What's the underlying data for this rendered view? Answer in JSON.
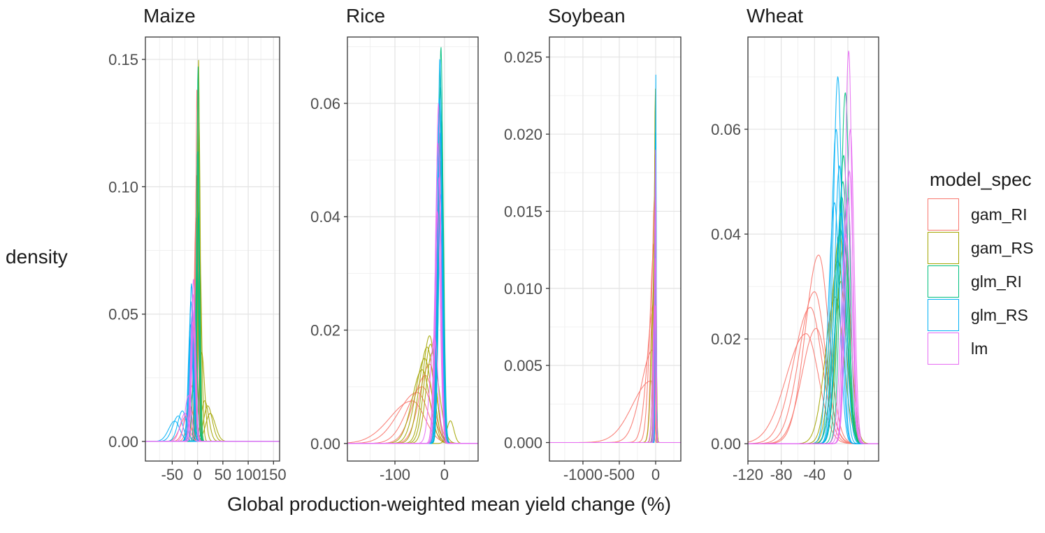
{
  "figure": {
    "x_axis_title": "Global production-weighted mean yield change (%)",
    "y_axis_title": "density"
  },
  "legend": {
    "title": "model_spec",
    "entries": [
      {
        "label": "gam_RI",
        "color": "#F8766D"
      },
      {
        "label": "gam_RS",
        "color": "#A3A500"
      },
      {
        "label": "glm_RI",
        "color": "#00BF7D"
      },
      {
        "label": "glm_RS",
        "color": "#00B0F6"
      },
      {
        "label": "lm",
        "color": "#E76BF3"
      }
    ]
  },
  "chart_data": {
    "type": "density",
    "title": "",
    "xlabel": "Global production-weighted mean yield change (%)",
    "ylabel": "density",
    "legend_title": "model_spec",
    "legend_position": "right",
    "grid": true,
    "series_colors": {
      "gam_RI": "#F8766D",
      "gam_RS": "#A3A500",
      "glm_RI": "#00BF7D",
      "glm_RS": "#00B0F6",
      "lm": "#E76BF3"
    },
    "panels": [
      {
        "title": "Maize",
        "xlim": [
          -103,
          162
        ],
        "ylim": [
          -0.0077,
          0.1588
        ],
        "x_ticks": [
          {
            "v": -50,
            "label": "-50"
          },
          {
            "v": 0,
            "label": "0"
          },
          {
            "v": 50,
            "label": "50"
          },
          {
            "v": 100,
            "label": "100"
          },
          {
            "v": 150,
            "label": "150"
          }
        ],
        "x_minor": [
          -75,
          -25,
          25,
          75,
          125
        ],
        "y_ticks": [
          {
            "v": 0,
            "label": "0.00"
          },
          {
            "v": 0.05,
            "label": "0.05"
          },
          {
            "v": 0.1,
            "label": "0.10"
          },
          {
            "v": 0.15,
            "label": "0.15"
          }
        ],
        "y_minor": [
          0.025,
          0.075,
          0.125
        ],
        "curves": [
          {
            "m": "gam_RI",
            "c": -1,
            "sl": 2.5,
            "sr": 2.5,
            "p": 0.14
          },
          {
            "m": "gam_RI",
            "c": -2,
            "sl": 3,
            "sr": 3,
            "p": 0.105
          },
          {
            "m": "gam_RI",
            "c": -3,
            "sl": 4,
            "sr": 3.5,
            "p": 0.088
          },
          {
            "m": "gam_RI",
            "c": -6,
            "sl": 6,
            "sr": 5,
            "p": 0.045
          },
          {
            "m": "gam_RI",
            "c": -10,
            "sl": 8,
            "sr": 6,
            "p": 0.022
          },
          {
            "m": "gam_RI",
            "c": -15,
            "sl": 10,
            "sr": 8,
            "p": 0.014
          },
          {
            "m": "gam_RI",
            "c": -22,
            "sl": 12,
            "sr": 9,
            "p": 0.01
          },
          {
            "m": "gam_RS",
            "c": 2,
            "sl": 2.2,
            "sr": 2.2,
            "p": 0.15
          },
          {
            "m": "gam_RS",
            "c": 3,
            "sl": 2.5,
            "sr": 2.5,
            "p": 0.125
          },
          {
            "m": "gam_RS",
            "c": 4,
            "sl": 3,
            "sr": 4,
            "p": 0.075
          },
          {
            "m": "gam_RS",
            "c": 8,
            "sl": 5,
            "sr": 6,
            "p": 0.035
          },
          {
            "m": "gam_RS",
            "c": 14,
            "sl": 7,
            "sr": 8,
            "p": 0.016
          },
          {
            "m": "gam_RS",
            "c": 20,
            "sl": 8,
            "sr": 9,
            "p": 0.014
          },
          {
            "m": "gam_RS",
            "c": 25,
            "sl": 9,
            "sr": 10,
            "p": 0.011
          },
          {
            "m": "glm_RI",
            "c": 1,
            "sl": 2.2,
            "sr": 2.2,
            "p": 0.148
          },
          {
            "m": "glm_RI",
            "c": 0,
            "sl": 2.5,
            "sr": 2.5,
            "p": 0.115
          },
          {
            "m": "glm_RI",
            "c": 2,
            "sl": 3,
            "sr": 3,
            "p": 0.09
          },
          {
            "m": "glm_RI",
            "c": -1,
            "sl": 3.5,
            "sr": 3.5,
            "p": 0.07
          },
          {
            "m": "glm_RI",
            "c": -4,
            "sl": 5,
            "sr": 4,
            "p": 0.04
          },
          {
            "m": "glm_RI",
            "c": -8,
            "sl": 7,
            "sr": 5,
            "p": 0.02
          },
          {
            "m": "glm_RS",
            "c": -12,
            "sl": 3.5,
            "sr": 3.5,
            "p": 0.062
          },
          {
            "m": "glm_RS",
            "c": -13,
            "sl": 4,
            "sr": 4,
            "p": 0.055
          },
          {
            "m": "glm_RS",
            "c": -11,
            "sl": 4,
            "sr": 4,
            "p": 0.05
          },
          {
            "m": "glm_RS",
            "c": -14,
            "sl": 4.5,
            "sr": 4.5,
            "p": 0.046
          },
          {
            "m": "glm_RS",
            "c": -30,
            "sl": 9,
            "sr": 8,
            "p": 0.012
          },
          {
            "m": "glm_RS",
            "c": -38,
            "sl": 11,
            "sr": 9,
            "p": 0.01
          },
          {
            "m": "glm_RS",
            "c": -45,
            "sl": 12,
            "sr": 10,
            "p": 0.008
          },
          {
            "m": "lm",
            "c": -8,
            "sl": 3.5,
            "sr": 3.5,
            "p": 0.064
          },
          {
            "m": "lm",
            "c": -9,
            "sl": 4,
            "sr": 4,
            "p": 0.058
          },
          {
            "m": "lm",
            "c": -7,
            "sl": 4,
            "sr": 4,
            "p": 0.052
          },
          {
            "m": "lm",
            "c": -10,
            "sl": 4.5,
            "sr": 4.5,
            "p": 0.047
          },
          {
            "m": "lm",
            "c": -18,
            "sl": 7,
            "sr": 6,
            "p": 0.018
          },
          {
            "m": "lm",
            "c": -25,
            "sl": 9,
            "sr": 8,
            "p": 0.011
          }
        ]
      },
      {
        "title": "Rice",
        "xlim": [
          -196,
          68
        ],
        "ylim": [
          -0.0031,
          0.0717
        ],
        "x_ticks": [
          {
            "v": -100,
            "label": "-100"
          },
          {
            "v": 0,
            "label": "0"
          }
        ],
        "x_minor": [
          -150,
          -50,
          50
        ],
        "y_ticks": [
          {
            "v": 0,
            "label": "0.00"
          },
          {
            "v": 0.02,
            "label": "0.02"
          },
          {
            "v": 0.04,
            "label": "0.04"
          },
          {
            "v": 0.06,
            "label": "0.06"
          }
        ],
        "y_minor": [
          0.01,
          0.03,
          0.05,
          0.07
        ],
        "curves": [
          {
            "m": "gam_RI",
            "c": -30,
            "sl": 20,
            "sr": 14,
            "p": 0.014
          },
          {
            "m": "gam_RI",
            "c": -38,
            "sl": 25,
            "sr": 16,
            "p": 0.012
          },
          {
            "m": "gam_RI",
            "c": -45,
            "sl": 30,
            "sr": 20,
            "p": 0.01
          },
          {
            "m": "gam_RI",
            "c": -55,
            "sl": 38,
            "sr": 22,
            "p": 0.009
          },
          {
            "m": "gam_RI",
            "c": -65,
            "sl": 45,
            "sr": 25,
            "p": 0.0075
          },
          {
            "m": "gam_RS",
            "c": -30,
            "sl": 14,
            "sr": 12,
            "p": 0.019
          },
          {
            "m": "gam_RS",
            "c": -28,
            "sl": 13,
            "sr": 11,
            "p": 0.0175
          },
          {
            "m": "gam_RS",
            "c": -35,
            "sl": 16,
            "sr": 13,
            "p": 0.017
          },
          {
            "m": "gam_RS",
            "c": -25,
            "sl": 12,
            "sr": 14,
            "p": 0.016
          },
          {
            "m": "gam_RS",
            "c": -40,
            "sl": 18,
            "sr": 14,
            "p": 0.015
          },
          {
            "m": "gam_RS",
            "c": -45,
            "sl": 20,
            "sr": 15,
            "p": 0.013
          },
          {
            "m": "gam_RS",
            "c": 12,
            "sl": 7,
            "sr": 7,
            "p": 0.004
          },
          {
            "m": "glm_RI",
            "c": -7,
            "sl": 4.5,
            "sr": 4,
            "p": 0.07
          },
          {
            "m": "glm_RI",
            "c": -8,
            "sl": 5,
            "sr": 4.5,
            "p": 0.063
          },
          {
            "m": "glm_RI",
            "c": -6,
            "sl": 5,
            "sr": 4.5,
            "p": 0.057
          },
          {
            "m": "glm_RI",
            "c": -9,
            "sl": 5.5,
            "sr": 5,
            "p": 0.05
          },
          {
            "m": "glm_RI",
            "c": -10,
            "sl": 6,
            "sr": 5,
            "p": 0.043
          },
          {
            "m": "glm_RS",
            "c": -9,
            "sl": 4.5,
            "sr": 4,
            "p": 0.068
          },
          {
            "m": "glm_RS",
            "c": -10,
            "sl": 5,
            "sr": 4.5,
            "p": 0.061
          },
          {
            "m": "glm_RS",
            "c": -8,
            "sl": 5,
            "sr": 4.5,
            "p": 0.055
          },
          {
            "m": "glm_RS",
            "c": -11,
            "sl": 5.5,
            "sr": 5,
            "p": 0.048
          },
          {
            "m": "glm_RS",
            "c": -7,
            "sl": 5,
            "sr": 5,
            "p": 0.044
          },
          {
            "m": "lm",
            "c": -12,
            "sl": 5,
            "sr": 4.5,
            "p": 0.06
          },
          {
            "m": "lm",
            "c": -13,
            "sl": 5.5,
            "sr": 5,
            "p": 0.053
          },
          {
            "m": "lm",
            "c": -11,
            "sl": 5.5,
            "sr": 5,
            "p": 0.047
          },
          {
            "m": "lm",
            "c": -14,
            "sl": 6,
            "sr": 5.5,
            "p": 0.041
          },
          {
            "m": "lm",
            "c": -20,
            "sl": 9,
            "sr": 7,
            "p": 0.019
          }
        ]
      },
      {
        "title": "Soybean",
        "xlim": [
          -1461,
          346
        ],
        "ylim": [
          -0.0012,
          0.0263
        ],
        "x_ticks": [
          {
            "v": -1000,
            "label": "-1000"
          },
          {
            "v": -500,
            "label": "-500"
          },
          {
            "v": 0,
            "label": "0"
          }
        ],
        "x_minor": [
          -1250,
          -750,
          -250,
          250
        ],
        "y_ticks": [
          {
            "v": 0,
            "label": "0.000"
          },
          {
            "v": 0.005,
            "label": "0.005"
          },
          {
            "v": 0.01,
            "label": "0.010"
          },
          {
            "v": 0.015,
            "label": "0.015"
          },
          {
            "v": 0.02,
            "label": "0.020"
          },
          {
            "v": 0.025,
            "label": "0.025"
          }
        ],
        "y_minor": [
          0.0025,
          0.0075,
          0.0125,
          0.0175,
          0.0225
        ],
        "curves": [
          {
            "m": "gam_RI",
            "c": -12,
            "sl": 40,
            "sr": 10,
            "p": 0.016
          },
          {
            "m": "gam_RI",
            "c": -18,
            "sl": 60,
            "sr": 12,
            "p": 0.013
          },
          {
            "m": "gam_RI",
            "c": -25,
            "sl": 90,
            "sr": 15,
            "p": 0.009
          },
          {
            "m": "gam_RI",
            "c": -40,
            "sl": 160,
            "sr": 18,
            "p": 0.006
          },
          {
            "m": "gam_RI",
            "c": -60,
            "sl": 260,
            "sr": 20,
            "p": 0.004
          },
          {
            "m": "gam_RS",
            "c": -4,
            "sl": 14,
            "sr": 10,
            "p": 0.023
          },
          {
            "m": "gam_RS",
            "c": -6,
            "sl": 18,
            "sr": 12,
            "p": 0.019
          },
          {
            "m": "gam_RS",
            "c": -10,
            "sl": 25,
            "sr": 14,
            "p": 0.015
          },
          {
            "m": "gam_RS",
            "c": -15,
            "sl": 40,
            "sr": 16,
            "p": 0.011
          },
          {
            "m": "glm_RI",
            "c": -1,
            "sl": 8,
            "sr": 7,
            "p": 0.021
          },
          {
            "m": "glm_RI",
            "c": -2,
            "sl": 10,
            "sr": 8,
            "p": 0.018
          },
          {
            "m": "glm_RI",
            "c": -4,
            "sl": 12,
            "sr": 9,
            "p": 0.015
          },
          {
            "m": "glm_RI",
            "c": -6,
            "sl": 16,
            "sr": 10,
            "p": 0.012
          },
          {
            "m": "glm_RS",
            "c": 1,
            "sl": 6,
            "sr": 6,
            "p": 0.0248
          },
          {
            "m": "glm_RS",
            "c": 0,
            "sl": 8,
            "sr": 7,
            "p": 0.021
          },
          {
            "m": "glm_RS",
            "c": -2,
            "sl": 10,
            "sr": 8,
            "p": 0.017
          },
          {
            "m": "glm_RS",
            "c": -3,
            "sl": 12,
            "sr": 9,
            "p": 0.014
          },
          {
            "m": "lm",
            "c": -3,
            "sl": 10,
            "sr": 8,
            "p": 0.019
          },
          {
            "m": "lm",
            "c": -5,
            "sl": 13,
            "sr": 9,
            "p": 0.016
          },
          {
            "m": "lm",
            "c": -8,
            "sl": 18,
            "sr": 11,
            "p": 0.012
          },
          {
            "m": "lm",
            "c": -12,
            "sl": 28,
            "sr": 13,
            "p": 0.009
          }
        ]
      },
      {
        "title": "Wheat",
        "xlim": [
          -120,
          37
        ],
        "ylim": [
          -0.0033,
          0.0776
        ],
        "x_ticks": [
          {
            "v": -120,
            "label": "-120"
          },
          {
            "v": -80,
            "label": "-80"
          },
          {
            "v": -40,
            "label": "-40"
          },
          {
            "v": 0,
            "label": "0"
          }
        ],
        "x_minor": [
          -100,
          -60,
          -20,
          20
        ],
        "y_ticks": [
          {
            "v": 0,
            "label": "0.00"
          },
          {
            "v": 0.02,
            "label": "0.02"
          },
          {
            "v": 0.04,
            "label": "0.04"
          },
          {
            "v": 0.06,
            "label": "0.06"
          }
        ],
        "y_minor": [
          0.01,
          0.03,
          0.05,
          0.07
        ],
        "curves": [
          {
            "m": "gam_RI",
            "c": -35,
            "sl": 16,
            "sr": 12,
            "p": 0.036
          },
          {
            "m": "gam_RI",
            "c": -40,
            "sl": 18,
            "sr": 13,
            "p": 0.029
          },
          {
            "m": "gam_RI",
            "c": -45,
            "sl": 20,
            "sr": 14,
            "p": 0.026
          },
          {
            "m": "gam_RI",
            "c": -38,
            "sl": 17,
            "sr": 13,
            "p": 0.022
          },
          {
            "m": "gam_RI",
            "c": -50,
            "sl": 24,
            "sr": 15,
            "p": 0.021
          },
          {
            "m": "gam_RS",
            "c": -10,
            "sl": 9,
            "sr": 8,
            "p": 0.04
          },
          {
            "m": "gam_RS",
            "c": -5,
            "sl": 8,
            "sr": 8,
            "p": 0.038
          },
          {
            "m": "gam_RS",
            "c": -12,
            "sl": 10,
            "sr": 9,
            "p": 0.035
          },
          {
            "m": "gam_RS",
            "c": -8,
            "sl": 9,
            "sr": 8,
            "p": 0.031
          },
          {
            "m": "gam_RS",
            "c": -15,
            "sl": 12,
            "sr": 10,
            "p": 0.028
          },
          {
            "m": "glm_RI",
            "c": -3,
            "sl": 5.5,
            "sr": 5,
            "p": 0.067
          },
          {
            "m": "glm_RI",
            "c": -5,
            "sl": 6,
            "sr": 5.5,
            "p": 0.055
          },
          {
            "m": "glm_RI",
            "c": -6,
            "sl": 7,
            "sr": 6,
            "p": 0.05
          },
          {
            "m": "glm_RI",
            "c": -7,
            "sl": 7,
            "sr": 6,
            "p": 0.047
          },
          {
            "m": "glm_RI",
            "c": -9,
            "sl": 8,
            "sr": 7,
            "p": 0.041
          },
          {
            "m": "glm_RS",
            "c": -12,
            "sl": 5.5,
            "sr": 5,
            "p": 0.07
          },
          {
            "m": "glm_RS",
            "c": -14,
            "sl": 6,
            "sr": 5.5,
            "p": 0.06
          },
          {
            "m": "glm_RS",
            "c": -10,
            "sl": 6,
            "sr": 5.5,
            "p": 0.053
          },
          {
            "m": "glm_RS",
            "c": -16,
            "sl": 7,
            "sr": 6,
            "p": 0.046
          },
          {
            "m": "glm_RS",
            "c": -8,
            "sl": 6.5,
            "sr": 6,
            "p": 0.044
          },
          {
            "m": "lm",
            "c": 1,
            "sl": 4.5,
            "sr": 4,
            "p": 0.075
          },
          {
            "m": "lm",
            "c": 3,
            "sl": 5,
            "sr": 4.5,
            "p": 0.06
          },
          {
            "m": "lm",
            "c": 2,
            "sl": 5,
            "sr": 4.5,
            "p": 0.052
          },
          {
            "m": "lm",
            "c": 0,
            "sl": 5.5,
            "sr": 5,
            "p": 0.047
          },
          {
            "m": "lm",
            "c": -2,
            "sl": 6,
            "sr": 5.5,
            "p": 0.04
          }
        ]
      }
    ]
  }
}
